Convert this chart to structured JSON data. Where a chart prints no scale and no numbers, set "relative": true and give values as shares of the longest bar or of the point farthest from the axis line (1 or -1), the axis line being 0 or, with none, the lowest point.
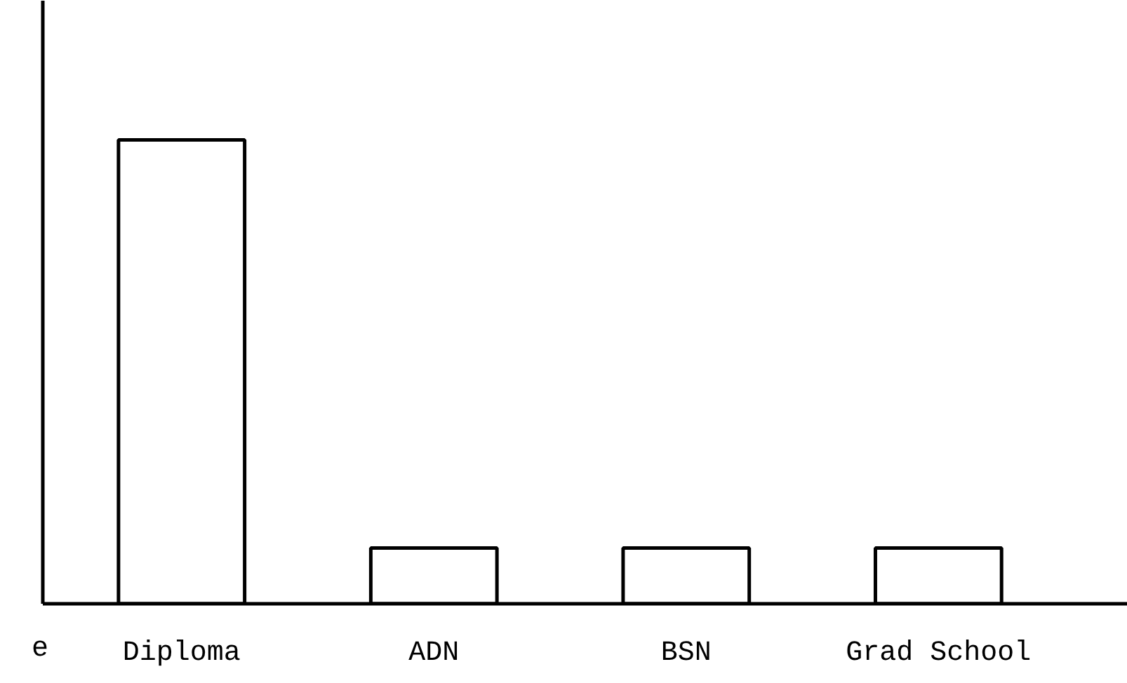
{
  "chart_data": {
    "type": "bar",
    "relative": true,
    "categories": [
      "Diploma",
      "ADN",
      "BSN",
      "Grad School"
    ],
    "values": [
      1,
      0.12,
      0.12,
      0.12
    ],
    "color": "#ffffff",
    "annotations": [
      "e"
    ]
  }
}
